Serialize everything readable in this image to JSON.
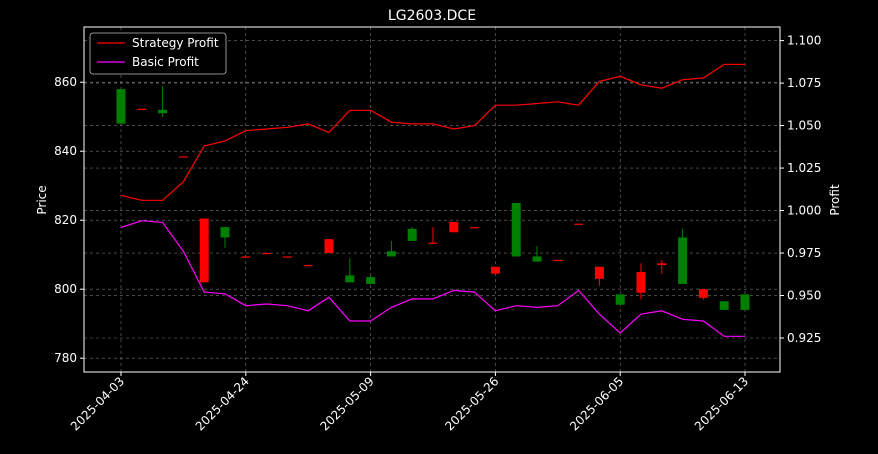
{
  "chart_data": {
    "type": "candlestick_with_lines",
    "title": "LG2603.DCE",
    "xlabel": "",
    "ylabel_left": "Price",
    "ylabel_right": "Profit",
    "ylim_left": [
      776,
      876
    ],
    "ylim_right": [
      0.905,
      1.108
    ],
    "yticks_left": [
      780,
      800,
      820,
      840,
      860
    ],
    "yticks_right": [
      "0.925",
      "0.950",
      "0.975",
      "1.000",
      "1.025",
      "1.050",
      "1.075",
      "1.100"
    ],
    "grid": true,
    "legend_position": "top-left",
    "xticks": [
      {
        "label": "2025-04-03",
        "index": 0
      },
      {
        "label": "2025-04-24",
        "index": 6
      },
      {
        "label": "2025-05-09",
        "index": 12
      },
      {
        "label": "2025-05-26",
        "index": 18
      },
      {
        "label": "2025-06-05",
        "index": 24
      },
      {
        "label": "2025-06-13",
        "index": 30
      }
    ],
    "candles": [
      {
        "o": 848,
        "h": 858,
        "l": 848,
        "c": 858
      },
      {
        "o": 852.3,
        "h": 852.3,
        "l": 852.3,
        "c": 852.3
      },
      {
        "o": 851,
        "h": 859,
        "l": 850,
        "c": 852
      },
      {
        "o": 838.5,
        "h": 838.5,
        "l": 838.5,
        "c": 838.5
      },
      {
        "o": 820.5,
        "h": 820.5,
        "l": 802,
        "c": 802
      },
      {
        "o": 815,
        "h": 818,
        "l": 812,
        "c": 818
      },
      {
        "o": 809.5,
        "h": 809.5,
        "l": 809.5,
        "c": 809.5
      },
      {
        "o": 810.5,
        "h": 810.5,
        "l": 810.5,
        "c": 810.5
      },
      {
        "o": 809.5,
        "h": 809.5,
        "l": 809.5,
        "c": 809.5
      },
      {
        "o": 807,
        "h": 807,
        "l": 807,
        "c": 807
      },
      {
        "o": 814.5,
        "h": 814.5,
        "l": 810.5,
        "c": 810.5
      },
      {
        "o": 802,
        "h": 809,
        "l": 802,
        "c": 804
      },
      {
        "o": 801.5,
        "h": 804,
        "l": 801.5,
        "c": 803.5
      },
      {
        "o": 809.5,
        "h": 814,
        "l": 809.5,
        "c": 811
      },
      {
        "o": 814,
        "h": 818,
        "l": 814,
        "c": 817.5
      },
      {
        "o": 813.5,
        "h": 818,
        "l": 813.5,
        "c": 813.5
      },
      {
        "o": 819.5,
        "h": 819.5,
        "l": 816.5,
        "c": 816.5
      },
      {
        "o": 818,
        "h": 818,
        "l": 818,
        "c": 818
      },
      {
        "o": 806.5,
        "h": 806.5,
        "l": 804.5,
        "c": 804.5
      },
      {
        "o": 809.5,
        "h": 825,
        "l": 809.5,
        "c": 825
      },
      {
        "o": 808,
        "h": 812.5,
        "l": 808,
        "c": 809.5
      },
      {
        "o": 808.5,
        "h": 808.5,
        "l": 808.5,
        "c": 808.5
      },
      {
        "o": 819,
        "h": 819,
        "l": 819,
        "c": 819
      },
      {
        "o": 806.5,
        "h": 806.5,
        "l": 801,
        "c": 803
      },
      {
        "o": 795.5,
        "h": 798.5,
        "l": 795.5,
        "c": 798.5
      },
      {
        "o": 805,
        "h": 807.5,
        "l": 797,
        "c": 799
      },
      {
        "o": 807.5,
        "h": 808.5,
        "l": 804.5,
        "c": 807
      },
      {
        "o": 801.5,
        "h": 817.5,
        "l": 801.5,
        "c": 815
      },
      {
        "o": 800,
        "h": 800,
        "l": 797,
        "c": 797.5
      },
      {
        "o": 794,
        "h": 796.5,
        "l": 794,
        "c": 796.5
      },
      {
        "o": 794,
        "h": 798.5,
        "l": 794,
        "c": 798.5
      }
    ],
    "series": [
      {
        "name": "Strategy Profit",
        "color": "#ff0000",
        "values": [
          1.009,
          1.006,
          1.006,
          1.017,
          1.038,
          1.041,
          1.047,
          1.048,
          1.049,
          1.051,
          1.046,
          1.059,
          1.059,
          1.052,
          1.051,
          1.051,
          1.048,
          1.05,
          1.062,
          1.062,
          1.063,
          1.064,
          1.062,
          1.076,
          1.079,
          1.074,
          1.072,
          1.077,
          1.078,
          1.086,
          1.086
        ]
      },
      {
        "name": "Basic Profit",
        "color": "#ff00ff",
        "values": [
          0.99,
          0.994,
          0.993,
          0.976,
          0.952,
          0.951,
          0.944,
          0.945,
          0.944,
          0.941,
          0.949,
          0.935,
          0.935,
          0.943,
          0.948,
          0.948,
          0.953,
          0.952,
          0.941,
          0.944,
          0.943,
          0.944,
          0.953,
          0.939,
          0.928,
          0.939,
          0.941,
          0.936,
          0.935,
          0.926,
          0.926
        ]
      }
    ],
    "up_color": "#008000",
    "down_color": "#ff0000"
  }
}
